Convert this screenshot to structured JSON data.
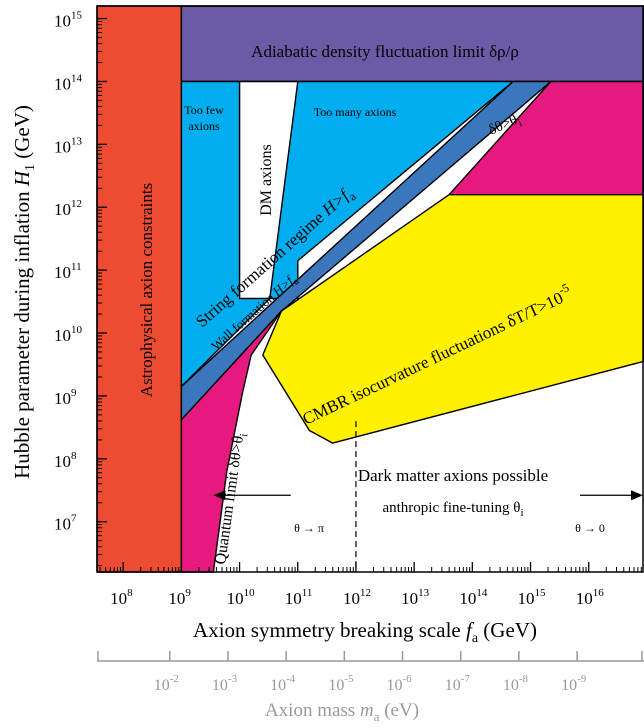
{
  "chart_data": {
    "type": "area",
    "xlabel": {
      "main": "Axion symmetry breaking scale ",
      "var": "f",
      "sub": "a",
      "unit": " (GeV)"
    },
    "ylabel": {
      "main": "Hubble parameter during inflation ",
      "var": "H",
      "sub": "1",
      "unit": " (GeV)"
    },
    "secondary_xlabel": {
      "main": "Axion mass ",
      "var": "m",
      "sub": "a",
      "unit": " (eV)"
    },
    "x_log10_range": [
      7.55,
      16.95
    ],
    "y_log10_range": [
      6.2,
      15.2
    ],
    "x_ticks": [
      {
        "base": "10",
        "exp": "8",
        "value": 8
      },
      {
        "base": "10",
        "exp": "9",
        "value": 9
      },
      {
        "base": "10",
        "exp": "10",
        "value": 10
      },
      {
        "base": "10",
        "exp": "11",
        "value": 11
      },
      {
        "base": "10",
        "exp": "12",
        "value": 12
      },
      {
        "base": "10",
        "exp": "13",
        "value": 13
      },
      {
        "base": "10",
        "exp": "14",
        "value": 14
      },
      {
        "base": "10",
        "exp": "15",
        "value": 15
      },
      {
        "base": "10",
        "exp": "16",
        "value": 16
      }
    ],
    "y_ticks": [
      {
        "base": "10",
        "exp": "7",
        "value": 7
      },
      {
        "base": "10",
        "exp": "8",
        "value": 8
      },
      {
        "base": "10",
        "exp": "9",
        "value": 9
      },
      {
        "base": "10",
        "exp": "10",
        "value": 10
      },
      {
        "base": "10",
        "exp": "11",
        "value": 11
      },
      {
        "base": "10",
        "exp": "12",
        "value": 12
      },
      {
        "base": "10",
        "exp": "13",
        "value": 13
      },
      {
        "base": "10",
        "exp": "14",
        "value": 14
      },
      {
        "base": "10",
        "exp": "15",
        "value": 15
      }
    ],
    "mass_ticks": [
      {
        "base": "10",
        "exp": "-2",
        "log_fa": 8.8
      },
      {
        "base": "10",
        "exp": "-3",
        "log_fa": 9.8
      },
      {
        "base": "10",
        "exp": "-4",
        "log_fa": 10.8
      },
      {
        "base": "10",
        "exp": "-5",
        "log_fa": 11.8
      },
      {
        "base": "10",
        "exp": "-6",
        "log_fa": 12.8
      },
      {
        "base": "10",
        "exp": "-7",
        "log_fa": 13.8
      },
      {
        "base": "10",
        "exp": "-8",
        "log_fa": 14.8
      },
      {
        "base": "10",
        "exp": "-9",
        "log_fa": 15.8
      }
    ],
    "colors": {
      "astrophysical": "#ee4b33",
      "adiabatic": "#6b5ba6",
      "cyan": "#00aeef",
      "wall": "#3a77bd",
      "magenta": "#e6197f",
      "yellow": "#fff100",
      "white": "#ffffff"
    },
    "regions": [
      {
        "name": "astrophysical",
        "color": "astrophysical",
        "points": [
          [
            7.55,
            6.2
          ],
          [
            9.0,
            6.2
          ],
          [
            9.0,
            15.2
          ],
          [
            7.55,
            15.2
          ]
        ]
      },
      {
        "name": "adiabatic",
        "color": "adiabatic",
        "points": [
          [
            9.0,
            14.0
          ],
          [
            16.95,
            14.0
          ],
          [
            16.95,
            15.2
          ],
          [
            9.0,
            15.2
          ]
        ]
      },
      {
        "name": "too-few-axions",
        "color": "cyan",
        "points": [
          [
            9.0,
            9.15
          ],
          [
            10.52,
            10.55
          ],
          [
            10.0,
            10.55
          ],
          [
            10.0,
            14.0
          ],
          [
            9.0,
            14.0
          ]
        ]
      },
      {
        "name": "dm-axions",
        "color": "white",
        "points": [
          [
            10.0,
            10.55
          ],
          [
            11.0,
            10.55
          ],
          [
            11.0,
            14.0
          ],
          [
            10.0,
            14.0
          ]
        ]
      },
      {
        "name": "too-many-axions",
        "color": "cyan",
        "points": [
          [
            10.52,
            10.55
          ],
          [
            11.0,
            10.55
          ],
          [
            11.0,
            11.15
          ],
          [
            14.7,
            14.0
          ],
          [
            11.0,
            14.0
          ]
        ]
      },
      {
        "name": "wall-band",
        "color": "wall",
        "points": [
          [
            9.0,
            8.62
          ],
          [
            10.72,
            10.35
          ],
          [
            15.35,
            14.0
          ],
          [
            14.7,
            14.0
          ],
          [
            9.0,
            9.15
          ]
        ]
      },
      {
        "name": "quantum-limit",
        "color": "magenta",
        "points": [
          [
            9.0,
            6.2
          ],
          [
            9.55,
            6.2
          ],
          [
            9.78,
            7.8
          ],
          [
            10.05,
            9.05
          ],
          [
            10.2,
            9.65
          ],
          [
            10.72,
            10.35
          ],
          [
            9.0,
            8.62
          ]
        ]
      },
      {
        "name": "dtheta-upper",
        "color": "magenta",
        "points": [
          [
            13.6,
            12.2
          ],
          [
            16.95,
            12.2
          ],
          [
            16.95,
            14.0
          ],
          [
            15.35,
            14.0
          ]
        ]
      },
      {
        "name": "cmbr",
        "color": "yellow",
        "points": [
          [
            10.72,
            10.35
          ],
          [
            13.6,
            12.2
          ],
          [
            16.95,
            12.2
          ],
          [
            16.95,
            9.55
          ],
          [
            11.6,
            8.25
          ],
          [
            11.2,
            8.45
          ],
          [
            10.4,
            9.65
          ]
        ]
      }
    ],
    "dashed_line": {
      "x": 12.0,
      "y_top": 8.6,
      "y_bottom": 6.2
    },
    "arrows": {
      "y": 7.42,
      "left_span": [
        9.55,
        10.88
      ],
      "right_span": [
        15.85,
        16.95
      ]
    },
    "annotations": {
      "adiabatic": "Adiabatic density fluctuation limit δρ/ρ",
      "too_few": [
        "Too few",
        "axions"
      ],
      "dm_axions": "DM axions",
      "too_many": "Too many axions",
      "string_regime": {
        "text": "String formation regime ",
        "var": "H>f",
        "sub": "a"
      },
      "wall_formation": {
        "text": "Wall formation ",
        "var": "H>f",
        "sub": "a"
      },
      "dtheta_upper": {
        "text": "δθ>θ",
        "sub": "i"
      },
      "cmbr": {
        "text": "CMBR isocurvature fluctuations δT/T>10",
        "sup": "-5"
      },
      "astrophysical": "Astrophysical axion constraints",
      "quantum": {
        "text": "Quantum limit δθ>θ",
        "sub": "i"
      },
      "dm_possible": "Dark matter axions possible",
      "anthropic": {
        "text": "anthropic fine-tuning θ",
        "sub": "i"
      },
      "theta_pi": "θ → π",
      "theta_zero": "θ → 0"
    }
  }
}
